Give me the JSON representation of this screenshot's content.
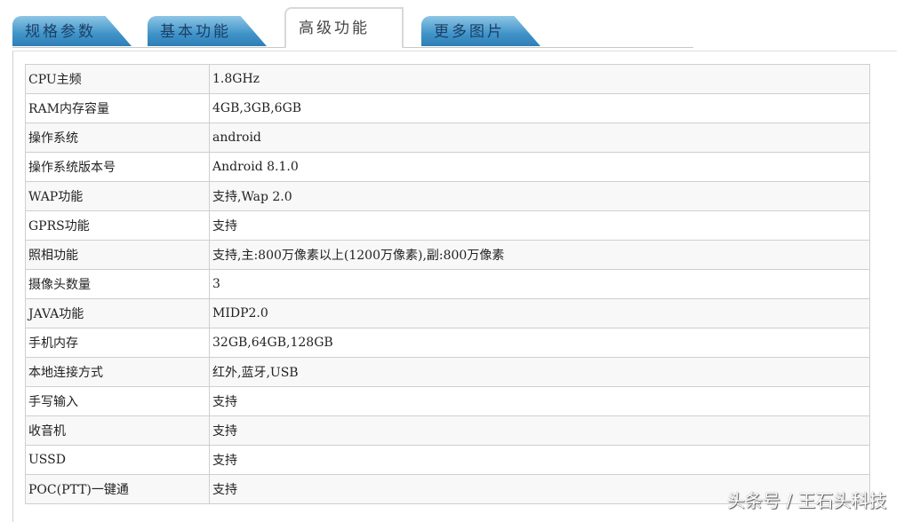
{
  "tabs": [
    {
      "label": "规格参数"
    },
    {
      "label": "基本功能"
    },
    {
      "label": "高级功能",
      "active": true
    },
    {
      "label": "更多图片"
    }
  ],
  "rows": [
    {
      "k": "CPU主频",
      "v": "1.8GHz"
    },
    {
      "k": "RAM内存容量",
      "v": "4GB,3GB,6GB"
    },
    {
      "k": "操作系统",
      "v": "android"
    },
    {
      "k": "操作系统版本号",
      "v": "Android 8.1.0"
    },
    {
      "k": "WAP功能",
      "v": "支持,Wap 2.0"
    },
    {
      "k": "GPRS功能",
      "v": "支持"
    },
    {
      "k": "照相功能",
      "v": "支持,主:800万像素以上(1200万像素),副:800万像素"
    },
    {
      "k": "摄像头数量",
      "v": "3"
    },
    {
      "k": "JAVA功能",
      "v": "MIDP2.0"
    },
    {
      "k": "手机内存",
      "v": "32GB,64GB,128GB"
    },
    {
      "k": "本地连接方式",
      "v": "红外,蓝牙,USB"
    },
    {
      "k": "手写输入",
      "v": "支持"
    },
    {
      "k": "收音机",
      "v": "支持"
    },
    {
      "k": "USSD",
      "v": "支持"
    },
    {
      "k": "POC(PTT)一键通",
      "v": "支持"
    }
  ],
  "watermark": "头条号 / 王石头科技"
}
